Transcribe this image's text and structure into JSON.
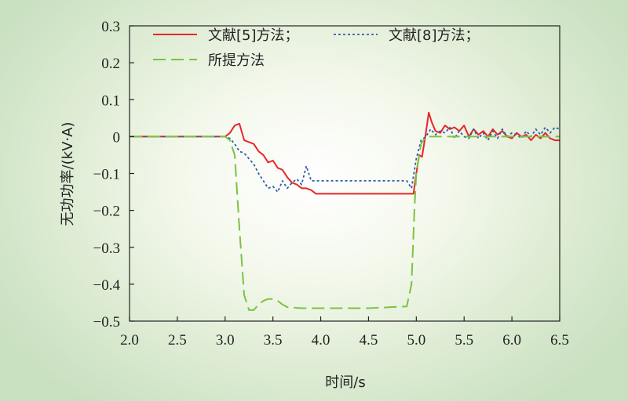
{
  "chart_data": {
    "type": "line",
    "xlabel": "时间/s",
    "ylabel": "无功功率/(kV·A)",
    "xlim": [
      2.0,
      6.5
    ],
    "ylim": [
      -0.5,
      0.3
    ],
    "xticks": [
      "2.0",
      "2.5",
      "3.0",
      "3.5",
      "4.0",
      "4.5",
      "5.0",
      "5.5",
      "6.0",
      "6.5"
    ],
    "yticks": [
      "0.3",
      "0.2",
      "0.1",
      "0",
      "−0.1",
      "−0.2",
      "−0.3",
      "−0.4",
      "−0.5"
    ],
    "legend_position": "top-left",
    "grid": false,
    "series": [
      {
        "name": "文献[5]方法；",
        "color": "#e8262b",
        "style": "solid",
        "x": [
          2.0,
          3.0,
          3.05,
          3.1,
          3.15,
          3.2,
          3.25,
          3.3,
          3.35,
          3.4,
          3.45,
          3.5,
          3.55,
          3.6,
          3.65,
          3.7,
          3.75,
          3.8,
          3.85,
          3.9,
          3.95,
          4.0,
          4.5,
          4.97,
          5.0,
          5.03,
          5.06,
          5.1,
          5.13,
          5.16,
          5.2,
          5.25,
          5.3,
          5.35,
          5.4,
          5.45,
          5.5,
          5.55,
          5.6,
          5.65,
          5.7,
          5.75,
          5.8,
          5.85,
          5.9,
          5.95,
          6.0,
          6.05,
          6.1,
          6.15,
          6.2,
          6.25,
          6.3,
          6.35,
          6.4,
          6.45,
          6.5
        ],
        "y": [
          0,
          0,
          0.01,
          0.03,
          0.035,
          -0.01,
          -0.015,
          -0.02,
          -0.04,
          -0.05,
          -0.07,
          -0.065,
          -0.085,
          -0.09,
          -0.11,
          -0.125,
          -0.13,
          -0.14,
          -0.14,
          -0.145,
          -0.155,
          -0.155,
          -0.155,
          -0.155,
          -0.1,
          -0.05,
          -0.055,
          0.01,
          0.065,
          0.04,
          0.015,
          0.01,
          0.03,
          0.02,
          0.025,
          0.015,
          0.03,
          0.0,
          0.02,
          0.005,
          0.015,
          0.0,
          0.02,
          0.005,
          0.015,
          0.0,
          -0.005,
          0.01,
          0.0,
          0.005,
          -0.01,
          0.005,
          -0.005,
          0.01,
          -0.005,
          -0.01,
          -0.01
        ]
      },
      {
        "name": "文献[8]方法；",
        "color": "#2e5da8",
        "style": "dotted",
        "x": [
          2.0,
          3.0,
          3.05,
          3.1,
          3.15,
          3.2,
          3.25,
          3.3,
          3.35,
          3.4,
          3.45,
          3.5,
          3.55,
          3.6,
          3.65,
          3.7,
          3.75,
          3.8,
          3.85,
          3.9,
          3.95,
          4.0,
          4.5,
          4.9,
          4.95,
          5.0,
          5.05,
          5.1,
          5.15,
          5.2,
          5.25,
          5.3,
          5.35,
          5.4,
          5.45,
          5.5,
          5.55,
          5.6,
          5.65,
          5.7,
          5.75,
          5.8,
          5.85,
          5.9,
          5.95,
          6.0,
          6.05,
          6.1,
          6.15,
          6.2,
          6.25,
          6.3,
          6.35,
          6.4,
          6.45,
          6.5
        ],
        "y": [
          0,
          0,
          -0.005,
          -0.02,
          -0.04,
          -0.045,
          -0.06,
          -0.075,
          -0.1,
          -0.12,
          -0.14,
          -0.135,
          -0.15,
          -0.12,
          -0.14,
          -0.125,
          -0.115,
          -0.13,
          -0.08,
          -0.12,
          -0.12,
          -0.12,
          -0.12,
          -0.12,
          -0.14,
          -0.06,
          -0.01,
          0.0,
          0.02,
          0.005,
          0.015,
          0.01,
          0.025,
          -0.005,
          0.015,
          0.0,
          -0.005,
          0.02,
          -0.005,
          0.01,
          -0.01,
          0.015,
          -0.005,
          0.02,
          0.0,
          0.01,
          0.005,
          -0.005,
          0.015,
          0.0,
          0.02,
          0.005,
          0.025,
          0.01,
          0.025,
          0.02
        ]
      },
      {
        "name": "所提方法",
        "color": "#7cc242",
        "style": "dashed",
        "x": [
          2.0,
          3.0,
          3.05,
          3.1,
          3.15,
          3.2,
          3.25,
          3.3,
          3.35,
          3.4,
          3.45,
          3.5,
          3.55,
          3.6,
          3.65,
          3.7,
          3.8,
          4.0,
          4.5,
          4.9,
          4.95,
          4.98,
          5.0,
          5.05,
          5.1,
          5.5,
          6.0,
          6.5
        ],
        "y": [
          0,
          0,
          -0.01,
          -0.05,
          -0.25,
          -0.43,
          -0.47,
          -0.47,
          -0.455,
          -0.445,
          -0.44,
          -0.44,
          -0.445,
          -0.455,
          -0.462,
          -0.463,
          -0.465,
          -0.465,
          -0.465,
          -0.46,
          -0.4,
          -0.2,
          -0.1,
          -0.02,
          0.0,
          0.0,
          0.0,
          0.0
        ]
      }
    ]
  }
}
